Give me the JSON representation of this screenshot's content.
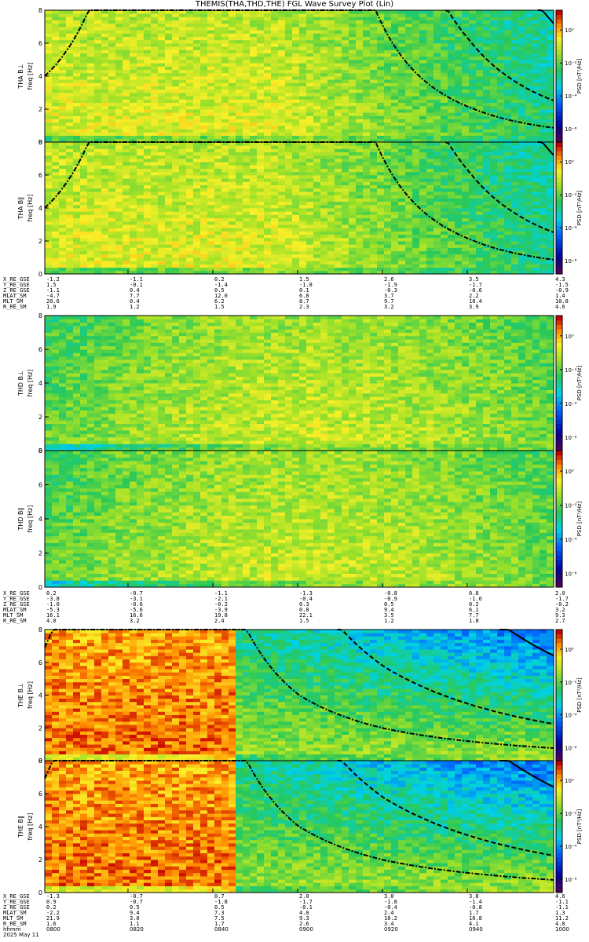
{
  "title": "THEMIS(THA,THD,THE) FGL Wave Survey Plot (Lin)",
  "colorbar": {
    "label": "PSD [nT²/Hz]",
    "ticks": [
      "10⁰",
      "10⁻²",
      "10⁻⁴",
      "10⁻⁶"
    ]
  },
  "time_axis": {
    "label": "hhmm",
    "date": "2025 May 11",
    "ticks": [
      "0800",
      "0820",
      "0840",
      "0900",
      "0920",
      "0940",
      "1000"
    ]
  },
  "chart_data": [
    {
      "type": "heatmap",
      "probe": "THA",
      "panels": [
        {
          "name": "THA B⊥",
          "ylabel": "freq [Hz]",
          "yticks": [
            "0",
            "2",
            "4",
            "6",
            "8"
          ],
          "ylim": [
            0,
            8
          ],
          "zlim": [
            1e-06,
            10
          ]
        },
        {
          "name": "THA B∥",
          "ylabel": "freq [Hz]",
          "yticks": [
            "0",
            "2",
            "4",
            "6",
            "8"
          ],
          "ylim": [
            0,
            8
          ],
          "zlim": [
            1e-06,
            10
          ]
        }
      ],
      "ephemeris": [
        {
          "label": "X_RE_GSE",
          "values": [
            "-1.2",
            "-1.1",
            "0.2",
            "1.5",
            "2.6",
            "3.5",
            "4.3"
          ]
        },
        {
          "label": "Y_RE_GSE",
          "values": [
            "1.5",
            "-0.1",
            "-1.4",
            "-1.8",
            "-1.9",
            "-1.7",
            "-1.5"
          ]
        },
        {
          "label": "Z_RE_GSE",
          "values": [
            "-1.1",
            "0.4",
            "0.5",
            "0.1",
            "-0.3",
            "-0.6",
            "-0.9"
          ]
        },
        {
          "label": "MLAT_SM",
          "values": [
            "-4.7",
            "7.7",
            "12.0",
            "6.8",
            "3.7",
            "2.2",
            "1.4"
          ]
        },
        {
          "label": "MLT_SM",
          "values": [
            "20.6",
            "0.4",
            "6.2",
            "8.7",
            "9.7",
            "10.4",
            "10.8"
          ]
        },
        {
          "label": "R_RE_SM",
          "values": [
            "1.9",
            "1.2",
            "1.5",
            "2.3",
            "3.2",
            "3.9",
            "4.6"
          ]
        }
      ]
    },
    {
      "type": "heatmap",
      "probe": "THD",
      "panels": [
        {
          "name": "THD B⊥",
          "ylabel": "freq [Hz]",
          "yticks": [
            "0",
            "2",
            "4",
            "6",
            "8"
          ],
          "ylim": [
            0,
            8
          ],
          "zlim": [
            1e-06,
            10
          ]
        },
        {
          "name": "THD B∥",
          "ylabel": "freq [Hz]",
          "yticks": [
            "0",
            "2",
            "4",
            "6",
            "8"
          ],
          "ylim": [
            0,
            8
          ],
          "zlim": [
            1e-06,
            10
          ]
        }
      ],
      "ephemeris": [
        {
          "label": "X_RE_GSE",
          "values": [
            "0.2",
            "-0.7",
            "-1.1",
            "-1.3",
            "-0.8",
            "0.8",
            "2.0"
          ]
        },
        {
          "label": "Y_RE_GSE",
          "values": [
            "-3.8",
            "-3.1",
            "-2.1",
            "-0.4",
            "-0.9",
            "-1.6",
            "-1.7"
          ]
        },
        {
          "label": "Z_RE_GSE",
          "values": [
            "-1.0",
            "-0.6",
            "-0.2",
            "0.3",
            "0.5",
            "0.2",
            "-0.2"
          ]
        },
        {
          "label": "MLAT_SM",
          "values": [
            "-5.3",
            "-5.6",
            "-3.9",
            "0.8",
            "9.4",
            "6.1",
            "3.2"
          ]
        },
        {
          "label": "MLT_SM",
          "values": [
            "16.1",
            "16.6",
            "19.8",
            "22.1",
            "3.5",
            "7.7",
            "9.3"
          ]
        },
        {
          "label": "R_RE_SM",
          "values": [
            "4.0",
            "3.2",
            "2.4",
            "1.5",
            "1.2",
            "1.8",
            "2.7"
          ]
        }
      ]
    },
    {
      "type": "heatmap",
      "probe": "THE",
      "panels": [
        {
          "name": "THE B⊥",
          "ylabel": "freq [Hz]",
          "yticks": [
            "0",
            "2",
            "4",
            "6",
            "8"
          ],
          "ylim": [
            0,
            8
          ],
          "zlim": [
            1e-06,
            10
          ]
        },
        {
          "name": "THE B∥",
          "ylabel": "freq [Hz]",
          "yticks": [
            "0",
            "2",
            "4",
            "6",
            "8"
          ],
          "ylim": [
            0,
            8
          ],
          "zlim": [
            1e-06,
            10
          ]
        }
      ],
      "ephemeris": [
        {
          "label": "X_RE_GSE",
          "values": [
            "-1.3",
            "-0.7",
            "0.7",
            "2.0",
            "3.0",
            "3.8",
            "4.6"
          ]
        },
        {
          "label": "Y_RE_GSE",
          "values": [
            "0.9",
            "-0.7",
            "-1.8",
            "-1.7",
            "-1.8",
            "-1.4",
            "-1.1"
          ]
        },
        {
          "label": "Z_RE_GSE",
          "values": [
            "0.2",
            "0.5",
            "0.5",
            "-0.1",
            "-0.4",
            "-0.8",
            "-1.1"
          ]
        },
        {
          "label": "MLAT_SM",
          "values": [
            "-2.2",
            "9.4",
            "7.3",
            "4.0",
            "2.4",
            "1.7",
            "1.3"
          ]
        },
        {
          "label": "MLT_SM",
          "values": [
            "21.9",
            "3.0",
            "7.5",
            "9.3",
            "10.2",
            "10.8",
            "11.2"
          ]
        },
        {
          "label": "R_RE_SM",
          "values": [
            "1.6",
            "1.1",
            "1.7",
            "2.6",
            "3.4",
            "4.1",
            "4.8"
          ]
        }
      ]
    }
  ]
}
